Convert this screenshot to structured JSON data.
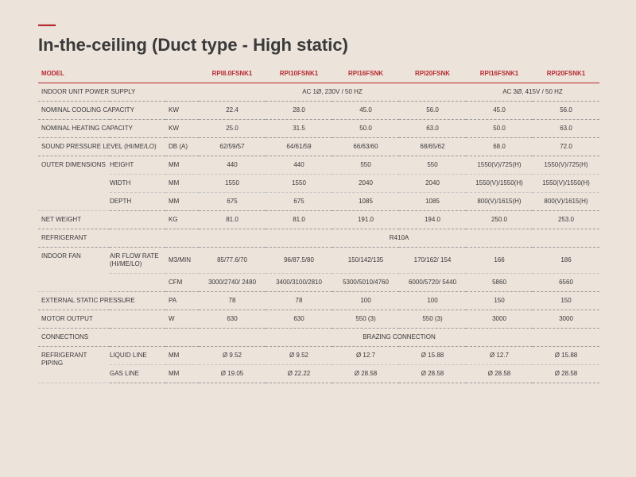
{
  "header": {
    "dash": "—",
    "title": "In-the-ceiling (Duct type - High static)"
  },
  "table": {
    "model_header": "MODEL",
    "models": [
      "RPI8.0FSNK1",
      "RPI10FSNK1",
      "RPI16FSNK",
      "RPI20FSNK",
      "RPI16FSNK1",
      "RPI20FSNK1"
    ],
    "rows": {
      "power_supply": {
        "label": "INDOOR UNIT POWER SUPPLY",
        "span_a": "AC 1Ø, 230V / 50 HZ",
        "span_b": "AC 3Ø, 415V / 50 HZ"
      },
      "cooling": {
        "label": "NOMINAL COOLING CAPACITY",
        "unit": "KW",
        "vals": [
          "22.4",
          "28.0",
          "45.0",
          "56.0",
          "45.0",
          "56.0"
        ]
      },
      "heating": {
        "label": "NOMINAL HEATING CAPACITY",
        "unit": "KW",
        "vals": [
          "25.0",
          "31.5",
          "50.0",
          "63.0",
          "50.0",
          "63.0"
        ]
      },
      "spl": {
        "label": "SOUND PRESSURE LEVEL (HI/ME/LO)",
        "unit": "DB (A)",
        "vals": [
          "62/59/57",
          "64/61/59",
          "66/63/60",
          "68/65/62",
          "68.0",
          "72.0"
        ]
      },
      "outer_dim": {
        "label": "OUTER DIMENSIONS",
        "height": {
          "label": "HEIGHT",
          "unit": "MM",
          "vals": [
            "440",
            "440",
            "550",
            "550",
            "1550(V)/725(H)",
            "1550(V)/725(H)"
          ]
        },
        "width": {
          "label": "WIDTH",
          "unit": "MM",
          "vals": [
            "1550",
            "1550",
            "2040",
            "2040",
            "1550(V)/1550(H)",
            "1550(V)/1550(H)"
          ]
        },
        "depth": {
          "label": "DEPTH",
          "unit": "MM",
          "vals": [
            "675",
            "675",
            "1085",
            "1085",
            "800(V)/1615(H)",
            "800(V)/1615(H)"
          ]
        }
      },
      "net_weight": {
        "label": "NET WEIGHT",
        "unit": "KG",
        "vals": [
          "81.0",
          "81.0",
          "191.0",
          "194.0",
          "250.0",
          "253.0"
        ]
      },
      "refrigerant": {
        "label": "REFRIGERANT",
        "span": "R410A"
      },
      "indoor_fan": {
        "label": "INDOOR FAN",
        "airflow": {
          "label": "AIR FLOW RATE (HI/ME/LO)",
          "unit": "M3/MIN",
          "vals": [
            "85/77.6/70",
            "96/87.5/80",
            "150/142/135",
            "170/162/\n154",
            "166",
            "186"
          ]
        },
        "cfm": {
          "unit": "CFM",
          "vals": [
            "3000/2740/\n2480",
            "3400/3100/2810",
            "5300/5010/4760",
            "6000/5720/\n5440",
            "5860",
            "6560"
          ]
        }
      },
      "esp": {
        "label": "EXTERNAL STATIC PRESSURE",
        "unit": "PA",
        "vals": [
          "78",
          "78",
          "100",
          "100",
          "150",
          "150"
        ]
      },
      "motor": {
        "label": "MOTOR OUTPUT",
        "unit": "W",
        "vals": [
          "630",
          "630",
          "550 (3)",
          "550 (3)",
          "3000",
          "3000"
        ]
      },
      "connections": {
        "label": "CONNECTIONS",
        "span": "BRAZING CONNECTION"
      },
      "piping": {
        "label": "REFRIGERANT PIPING",
        "liquid": {
          "label": "LIQUID LINE",
          "unit": "MM",
          "vals": [
            "Ø 9.52",
            "Ø 9.52",
            "Ø 12.7",
            "Ø 15.88",
            "Ø 12.7",
            "Ø 15.88"
          ]
        },
        "gas": {
          "label": "GAS LINE",
          "unit": "MM",
          "vals": [
            "Ø 19.05",
            "Ø 22.22",
            "Ø 28.58",
            "Ø 28.58",
            "Ø 28.58",
            "Ø 28.58"
          ]
        }
      }
    }
  }
}
